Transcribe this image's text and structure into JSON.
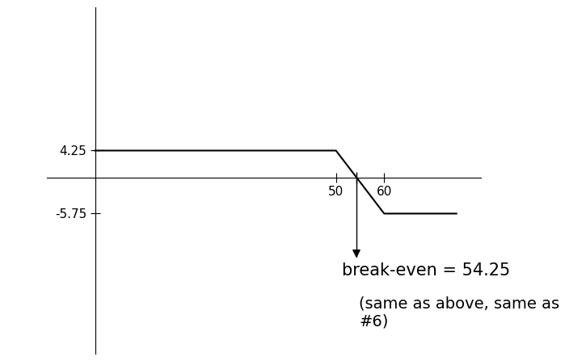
{
  "chart_data": {
    "type": "line",
    "x": [
      0,
      50,
      60,
      75
    ],
    "values": [
      4.25,
      4.25,
      -5.75,
      -5.75
    ],
    "color": "#000000",
    "xlim": [
      -10,
      80
    ],
    "ylim": [
      -28,
      27
    ],
    "xticks": [
      50,
      60
    ],
    "yticks": [
      -5.75,
      4.25
    ],
    "break_even": 54.25,
    "annotation": "break-even = 54.25",
    "note": "(same as above, same as #6)"
  }
}
